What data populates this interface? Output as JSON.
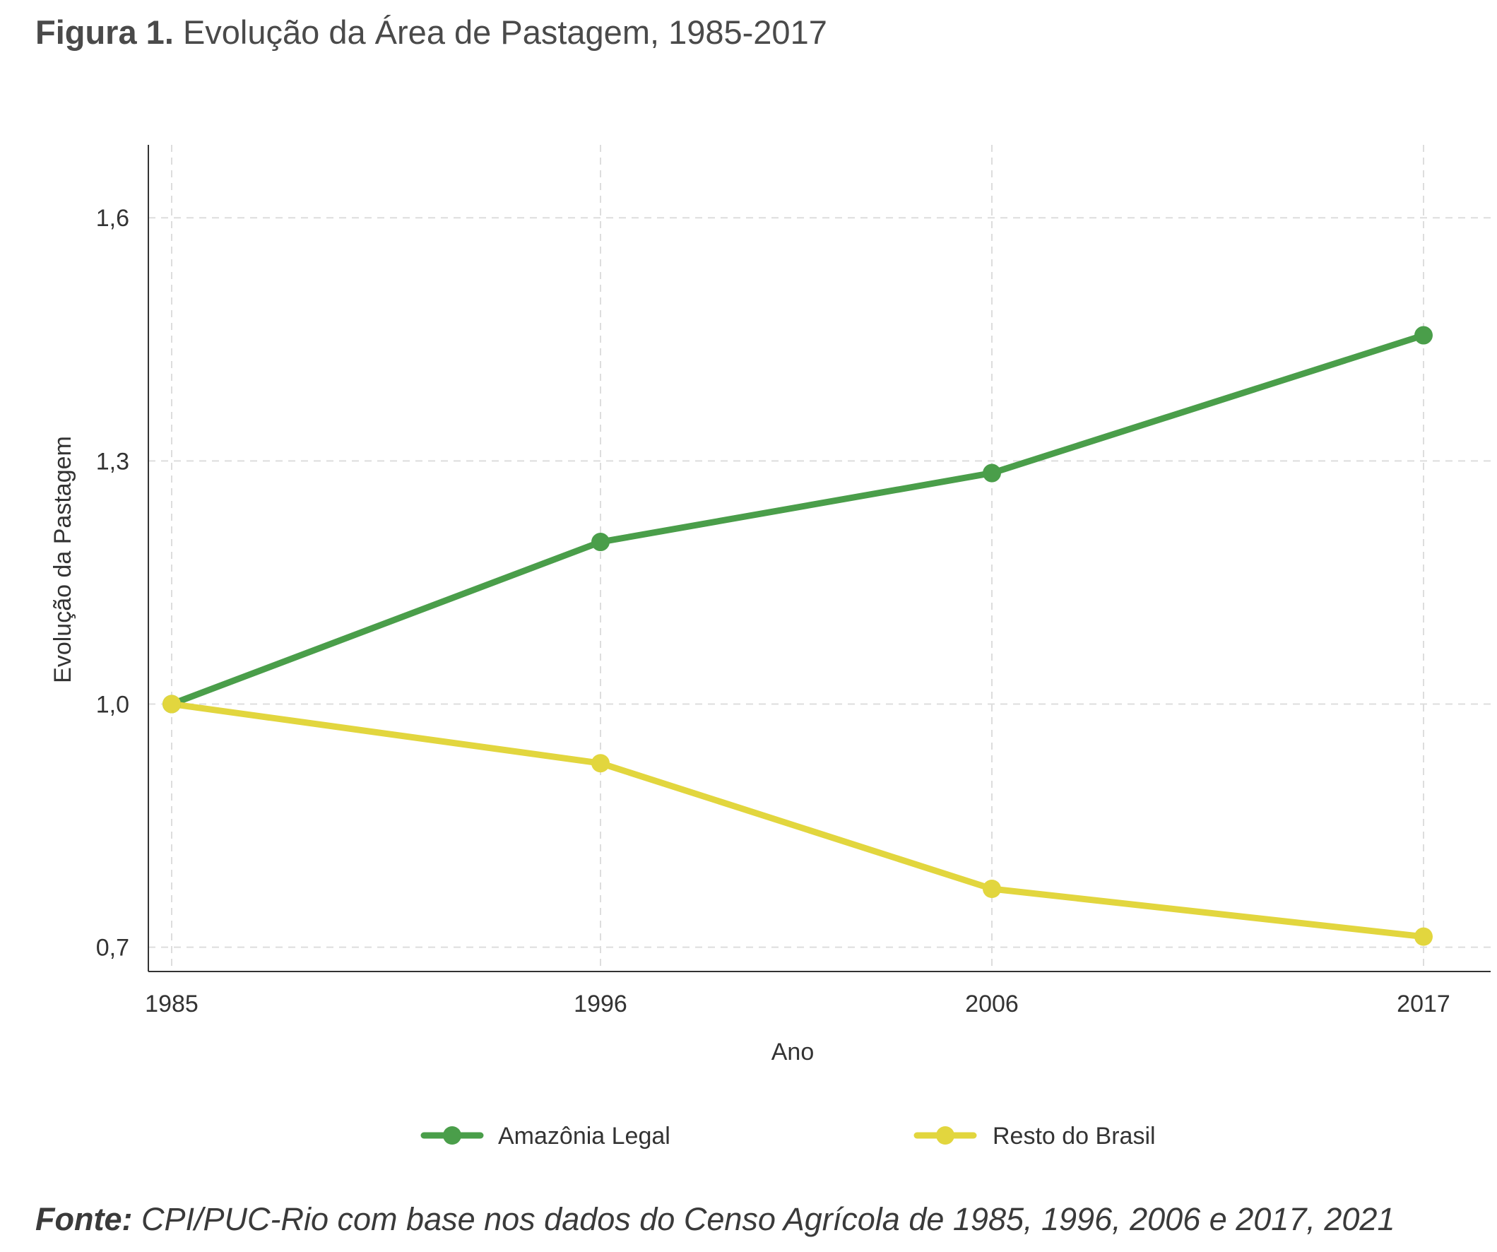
{
  "header": {
    "figure_label": "Figura 1.",
    "figure_title": "Evolução da Área de Pastagem, 1985-2017"
  },
  "footer": {
    "source_label": "Fonte:",
    "source_text": "CPI/PUC-Rio com base nos dados do Censo Agrícola de 1985, 1996, 2006 e 2017, 2021"
  },
  "chart_data": {
    "type": "line",
    "title": "",
    "xlabel": "Ano",
    "ylabel": "Evolução da Pastagem",
    "categories": [
      "1985",
      "1996",
      "2006",
      "2017"
    ],
    "yticks": [
      0.7,
      1.0,
      1.3,
      1.6
    ],
    "ytick_labels": [
      "0,7",
      "1,0",
      "1,3",
      "1,6"
    ],
    "ylim": [
      0.67,
      1.69
    ],
    "grid": true,
    "legend_position": "bottom-center",
    "series": [
      {
        "name": "Amazônia Legal",
        "color": "#4a9e4a",
        "values": [
          1.0,
          1.2,
          1.285,
          1.455
        ]
      },
      {
        "name": "Resto do Brasil",
        "color": "#e2d63e",
        "values": [
          1.0,
          0.927,
          0.772,
          0.713
        ]
      }
    ]
  }
}
